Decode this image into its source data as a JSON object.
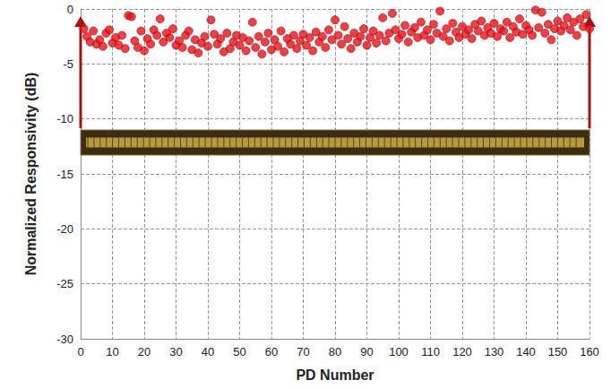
{
  "chart_data": {
    "type": "scatter",
    "x_label": "PD Number",
    "y_label": "Normalized Responsivity (dB)",
    "x": [
      1,
      2,
      3,
      4,
      5,
      6,
      7,
      8,
      9,
      10,
      11,
      12,
      13,
      14,
      15,
      16,
      17,
      18,
      19,
      20,
      21,
      22,
      23,
      24,
      25,
      26,
      27,
      28,
      29,
      30,
      31,
      32,
      33,
      34,
      35,
      36,
      37,
      38,
      39,
      40,
      41,
      42,
      43,
      44,
      45,
      46,
      47,
      48,
      49,
      50,
      51,
      52,
      53,
      54,
      55,
      56,
      57,
      58,
      59,
      60,
      61,
      62,
      63,
      64,
      65,
      66,
      67,
      68,
      69,
      70,
      71,
      72,
      73,
      74,
      75,
      76,
      77,
      78,
      79,
      80,
      81,
      82,
      83,
      84,
      85,
      86,
      87,
      88,
      89,
      90,
      91,
      92,
      93,
      94,
      95,
      96,
      97,
      98,
      99,
      100,
      101,
      102,
      103,
      104,
      105,
      106,
      107,
      108,
      109,
      110,
      111,
      112,
      113,
      114,
      115,
      116,
      117,
      118,
      119,
      120,
      121,
      122,
      123,
      124,
      125,
      126,
      127,
      128,
      129,
      130,
      131,
      132,
      133,
      134,
      135,
      136,
      137,
      138,
      139,
      140,
      141,
      142,
      143,
      144,
      145,
      146,
      147,
      148,
      149,
      150,
      151,
      152,
      153,
      154,
      155,
      156,
      157,
      158,
      159,
      160
    ],
    "values": [
      -1.8,
      -2.5,
      -3.0,
      -2.0,
      -3.2,
      -2.8,
      -3.4,
      -2.2,
      -1.9,
      -3.1,
      -2.6,
      -3.3,
      -2.4,
      -3.6,
      -0.6,
      -0.7,
      -2.9,
      -3.5,
      -2.0,
      -3.8,
      -2.7,
      -3.2,
      -1.9,
      -2.4,
      -0.9,
      -3.0,
      -2.2,
      -2.6,
      -1.8,
      -3.3,
      -2.9,
      -3.5,
      -2.4,
      -2.0,
      -3.7,
      -2.8,
      -4.0,
      -3.1,
      -2.5,
      -3.4,
      -1.0,
      -2.3,
      -3.2,
      -2.7,
      -3.9,
      -2.2,
      -3.6,
      -3.0,
      -2.4,
      -3.3,
      -2.6,
      -3.8,
      -2.9,
      -1.2,
      -3.5,
      -2.5,
      -4.1,
      -3.0,
      -2.2,
      -3.7,
      -2.8,
      -3.4,
      -2.0,
      -3.9,
      -2.7,
      -3.2,
      -2.4,
      -3.6,
      -2.9,
      -2.3,
      -3.3,
      -2.6,
      -3.8,
      -2.1,
      -3.0,
      -2.5,
      -3.5,
      -1.9,
      -2.8,
      -1.0,
      -2.4,
      -3.2,
      -1.6,
      -2.7,
      -3.6,
      -2.2,
      -3.0,
      -2.5,
      -1.8,
      -3.3,
      -2.6,
      -2.0,
      -3.1,
      -2.4,
      -0.8,
      -2.9,
      -2.2,
      -0.4,
      -1.9,
      -2.7,
      -2.3,
      -1.5,
      -3.0,
      -2.1,
      -1.7,
      -2.6,
      -1.2,
      -2.4,
      -1.9,
      -2.8,
      -1.4,
      -2.2,
      -0.2,
      -2.5,
      -1.8,
      -2.9,
      -1.3,
      -2.1,
      -2.6,
      -1.6,
      -2.3,
      -1.9,
      -2.7,
      -1.4,
      -2.0,
      -1.1,
      -2.4,
      -1.7,
      -2.2,
      -1.3,
      -2.5,
      -1.8,
      -2.0,
      -1.2,
      -2.6,
      -1.6,
      -2.1,
      -0.9,
      -2.3,
      -1.5,
      -1.9,
      -2.4,
      -0.1,
      -1.7,
      -0.3,
      -2.2,
      -1.4,
      -2.8,
      -1.8,
      -1.1,
      -2.0,
      -1.5,
      -0.8,
      -1.9,
      -1.2,
      -2.4,
      -0.9,
      -1.6,
      -0.5,
      -1.8
    ],
    "color": "#e8101a",
    "marker": "circle",
    "xlim": [
      0,
      160
    ],
    "xticks": [
      0,
      10,
      20,
      30,
      40,
      50,
      60,
      70,
      80,
      90,
      100,
      110,
      120,
      130,
      140,
      150,
      160
    ],
    "ylim": [
      -30,
      0
    ],
    "yticks": [
      -30,
      -25,
      -20,
      -15,
      -10,
      -5,
      0
    ],
    "grid": true
  }
}
